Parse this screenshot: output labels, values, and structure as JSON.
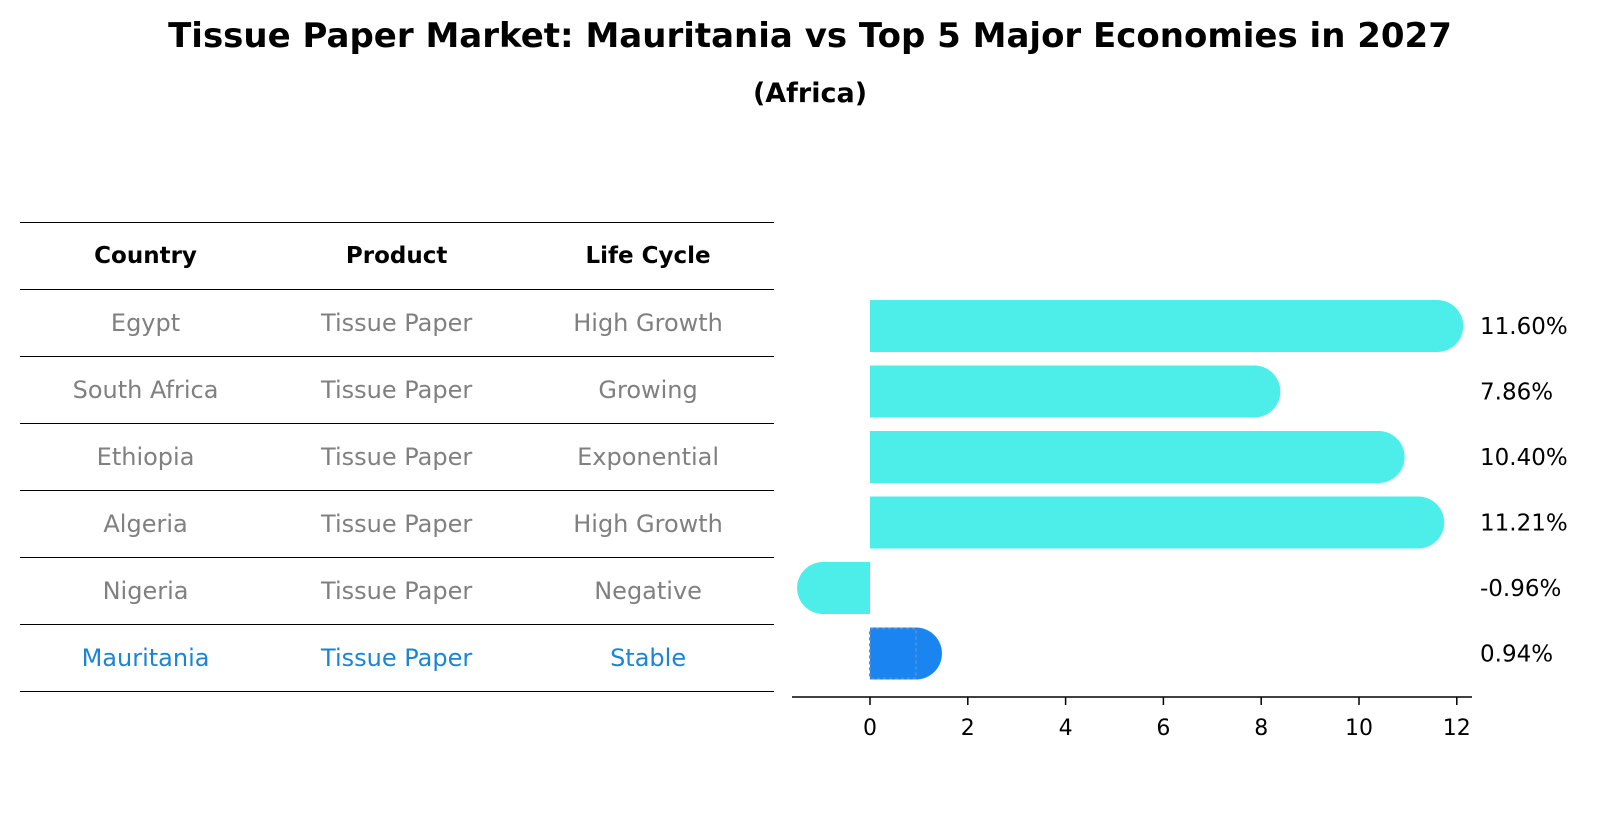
{
  "title": "Tissue Paper Market: Mauritania vs Top 5 Major Economies in 2027",
  "subtitle": "(Africa)",
  "table": {
    "headers": [
      "Country",
      "Product",
      "Life Cycle"
    ],
    "rows": [
      [
        "Egypt",
        "Tissue Paper",
        "High Growth"
      ],
      [
        "South Africa",
        "Tissue Paper",
        "Growing"
      ],
      [
        "Ethiopia",
        "Tissue Paper",
        "Exponential"
      ],
      [
        "Algeria",
        "Tissue Paper",
        "High Growth"
      ],
      [
        "Nigeria",
        "Tissue Paper",
        "Negative"
      ],
      [
        "Mauritania",
        "Tissue Paper",
        "Stable"
      ]
    ],
    "highlight_row": 5
  },
  "colors": {
    "bar": "#4deeea",
    "highlight_bar": "#1a85f0",
    "highlight_text": "#1a85d6",
    "muted_text": "#808080"
  },
  "chart_data": {
    "type": "bar",
    "orientation": "horizontal",
    "categories": [
      "Egypt",
      "South Africa",
      "Ethiopia",
      "Algeria",
      "Nigeria",
      "Mauritania"
    ],
    "values": [
      11.6,
      7.86,
      10.4,
      11.21,
      -0.96,
      0.94
    ],
    "value_labels": [
      "11.60%",
      "7.86%",
      "10.40%",
      "11.21%",
      "-0.96%",
      "0.94%"
    ],
    "xticks": [
      0,
      2,
      4,
      6,
      8,
      10,
      12
    ],
    "xlim": [
      -1.6,
      12.2
    ],
    "highlight": "Mauritania",
    "grid": false
  }
}
